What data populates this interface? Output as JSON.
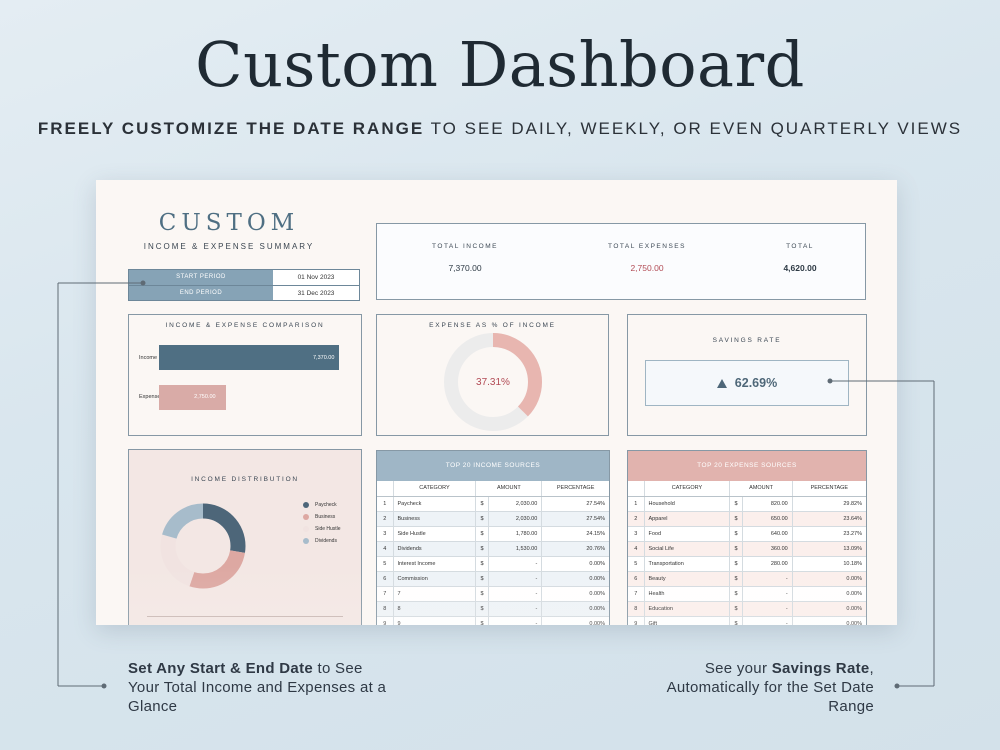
{
  "hero": {
    "title": "Custom Dashboard",
    "subtitle_bold": "FREELY CUSTOMIZE THE DATE RANGE",
    "subtitle_rest": " TO SEE DAILY, WEEKLY, OR EVEN QUARTERLY VIEWS"
  },
  "dashboard": {
    "title": "CUSTOM",
    "subtitle": "INCOME & EXPENSE SUMMARY",
    "period": {
      "start_label": "START PERIOD",
      "start_value": "01 Nov 2023",
      "end_label": "END PERIOD",
      "end_value": "31 Dec 2023"
    },
    "totals": {
      "income_label": "TOTAL INCOME",
      "income_value": "7,370.00",
      "expenses_label": "TOTAL EXPENSES",
      "expenses_value": "2,750.00",
      "total_label": "TOTAL",
      "total_value": "4,620.00"
    },
    "comparison": {
      "title": "INCOME & EXPENSE COMPARISON",
      "bars": [
        {
          "label": "Income",
          "value": 7370,
          "value_label": "7,370.00",
          "color": "#4f6f83"
        },
        {
          "label": "Expense",
          "value": 2750,
          "value_label": "2,750.00",
          "color": "#d9aba7"
        }
      ]
    },
    "expense_pct": {
      "title": "EXPENSE AS % OF INCOME",
      "value": 37.31,
      "value_label": "37.31%",
      "color_fill": "#e8b6b0",
      "color_rest": "#ececec",
      "color_text": "#b24b55"
    },
    "savings": {
      "title": "SAVINGS RATE",
      "icon": "triangle-up-icon",
      "value_label": "62.69%"
    },
    "distribution": {
      "title": "INCOME DISTRIBUTION",
      "segments": [
        {
          "label": "Paycheck",
          "value": 27.54,
          "color": "#4d6679"
        },
        {
          "label": "Business",
          "value": 27.54,
          "color": "#dda8a2"
        },
        {
          "label": "Side Hustle",
          "value": 24.15,
          "color": "#f1e3e1"
        },
        {
          "label": "Dividends",
          "value": 20.76,
          "color": "#a7bccb"
        }
      ]
    },
    "income_sources": {
      "title": "TOP 20 INCOME SOURCES",
      "columns": [
        "CATEGORY",
        "AMOUNT",
        "PERCENTAGE"
      ],
      "rows": [
        [
          "1",
          "Paycheck",
          "$",
          "2,030.00",
          "27.54%"
        ],
        [
          "2",
          "Business",
          "$",
          "2,030.00",
          "27.54%"
        ],
        [
          "3",
          "Side Hustle",
          "$",
          "1,780.00",
          "24.15%"
        ],
        [
          "4",
          "Dividends",
          "$",
          "1,530.00",
          "20.76%"
        ],
        [
          "5",
          "Interest Income",
          "$",
          "-",
          "0.00%"
        ],
        [
          "6",
          "Commission",
          "$",
          "-",
          "0.00%"
        ],
        [
          "7",
          "7",
          "$",
          "-",
          "0.00%"
        ],
        [
          "8",
          "8",
          "$",
          "-",
          "0.00%"
        ],
        [
          "9",
          "9",
          "$",
          "-",
          "0.00%"
        ]
      ]
    },
    "expense_sources": {
      "title": "TOP 20 EXPENSE SOURCES",
      "columns": [
        "CATEGORY",
        "AMOUNT",
        "PERCENTAGE"
      ],
      "rows": [
        [
          "1",
          "Household",
          "$",
          "820.00",
          "29.82%"
        ],
        [
          "2",
          "Apparel",
          "$",
          "650.00",
          "23.64%"
        ],
        [
          "3",
          "Food",
          "$",
          "640.00",
          "23.27%"
        ],
        [
          "4",
          "Social Life",
          "$",
          "360.00",
          "13.09%"
        ],
        [
          "5",
          "Transportation",
          "$",
          "280.00",
          "10.18%"
        ],
        [
          "6",
          "Beauty",
          "$",
          "-",
          "0.00%"
        ],
        [
          "7",
          "Health",
          "$",
          "-",
          "0.00%"
        ],
        [
          "8",
          "Education",
          "$",
          "-",
          "0.00%"
        ],
        [
          "9",
          "Gift",
          "$",
          "-",
          "0.00%"
        ]
      ]
    }
  },
  "callouts": {
    "left_bold": "Set Any Start & End Date",
    "left_rest": " to See Your Total Income and Expenses at a Glance",
    "right_pre": "See your ",
    "right_bold": "Savings Rate",
    "right_rest": ", Automatically for the Set Date Range"
  }
}
